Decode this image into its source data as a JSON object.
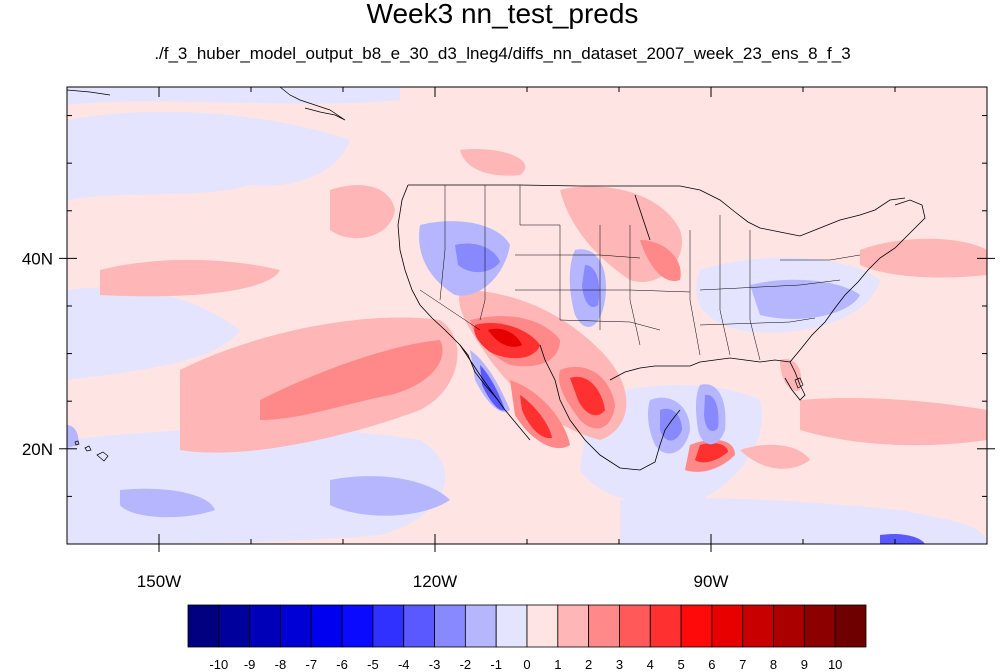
{
  "title": "Week3 nn_test_preds",
  "subtitle": "./f_3_huber_model_output_b8_e_30_d3_lneg4/diffs_nn_dataset_2007_week_23_ens_8_f_3",
  "map": {
    "projection": "cylindrical-equidistant",
    "lon_range": [
      -160,
      -60
    ],
    "lat_range": [
      10,
      58
    ],
    "x_ticks": [
      {
        "value": -150,
        "label": "150W"
      },
      {
        "value": -120,
        "label": "120W"
      },
      {
        "value": -90,
        "label": "90W"
      }
    ],
    "y_ticks": [
      {
        "value": 40,
        "label": "40N"
      },
      {
        "value": 20,
        "label": "20N"
      }
    ]
  },
  "colorbar": {
    "labels": [
      "-10",
      "-9",
      "-8",
      "-7",
      "-6",
      "-5",
      "-4",
      "-3",
      "-2",
      "-1",
      "0",
      "1",
      "2",
      "3",
      "4",
      "5",
      "6",
      "7",
      "8",
      "9",
      "10"
    ],
    "colors": [
      "#000080",
      "#00009c",
      "#0000b8",
      "#0000d4",
      "#0000f0",
      "#0a0aff",
      "#3030ff",
      "#5959ff",
      "#8888ff",
      "#b6b6ff",
      "#e4e4ff",
      "#ffe4e4",
      "#ffb6b6",
      "#ff8888",
      "#ff5959",
      "#ff3030",
      "#ff0a0a",
      "#e60000",
      "#c80000",
      "#aa0000",
      "#8c0000",
      "#6e0000"
    ]
  }
}
